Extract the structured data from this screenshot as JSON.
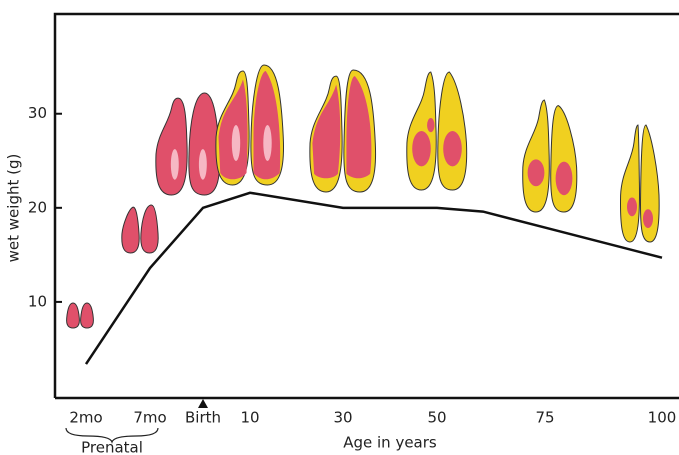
{
  "chart_data": {
    "type": "line",
    "y_label": "wet weight (g)",
    "x_label": "Age in years",
    "group_label": "Prenatal",
    "categories": [
      "2mo",
      "7mo",
      "Birth",
      "10",
      "30",
      "50",
      null,
      "75",
      "100"
    ],
    "values": [
      3.4,
      13.6,
      20,
      21.6,
      20,
      20,
      19.6,
      17.9,
      14.7
    ],
    "color": "#111111",
    "ylim": [
      0,
      40.6
    ],
    "yticks": [
      10,
      20,
      30
    ]
  }
}
